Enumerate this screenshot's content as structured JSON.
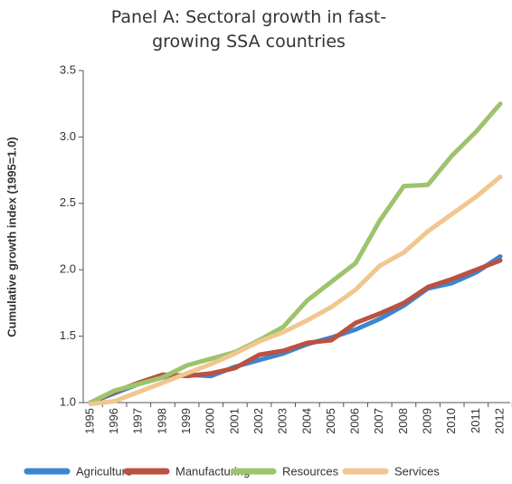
{
  "chart_data": {
    "type": "line",
    "title": "Panel A: Sectoral growth in fast-growing SSA countries",
    "y_label": "Cumulative growth index (1995=1.0)",
    "categories": [
      "1995",
      "1996",
      "1997",
      "1998",
      "1999",
      "2000",
      "2001",
      "2002",
      "2003",
      "2004",
      "2005",
      "2006",
      "2007",
      "2008",
      "2009",
      "2010",
      "2011",
      "2012"
    ],
    "series": [
      {
        "name": "Agriculture",
        "color": "#3b86d1",
        "values": [
          1.0,
          1.07,
          1.14,
          1.19,
          1.21,
          1.2,
          1.27,
          1.32,
          1.37,
          1.44,
          1.49,
          1.55,
          1.63,
          1.73,
          1.86,
          1.9,
          1.98,
          2.1
        ]
      },
      {
        "name": "Manufacturing",
        "color": "#bb5141",
        "values": [
          1.0,
          1.08,
          1.15,
          1.21,
          1.2,
          1.22,
          1.26,
          1.36,
          1.39,
          1.45,
          1.47,
          1.6,
          1.67,
          1.75,
          1.87,
          1.93,
          2.0,
          2.07
        ]
      },
      {
        "name": "Resources",
        "color": "#9dc46c",
        "values": [
          1.0,
          1.09,
          1.14,
          1.19,
          1.28,
          1.33,
          1.38,
          1.47,
          1.57,
          1.77,
          1.91,
          2.05,
          2.37,
          2.63,
          2.64,
          2.86,
          3.04,
          3.25
        ]
      },
      {
        "name": "Services",
        "color": "#f1c68f",
        "values": [
          0.99,
          1.01,
          1.08,
          1.15,
          1.22,
          1.29,
          1.37,
          1.46,
          1.53,
          1.62,
          1.72,
          1.85,
          2.03,
          2.13,
          2.29,
          2.42,
          2.55,
          2.7
        ]
      }
    ],
    "ylim": [
      1.0,
      3.5
    ],
    "yticks": [
      {
        "value": 1.0,
        "label": "1.0"
      },
      1.5,
      {
        "value": 2.0,
        "label": "2.0"
      },
      2.5,
      {
        "value": 3.0,
        "label": "3.0"
      },
      3.5
    ]
  }
}
